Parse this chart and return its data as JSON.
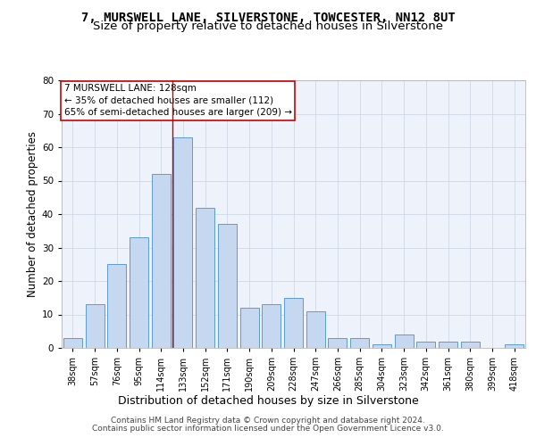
{
  "title": "7, MURSWELL LANE, SILVERSTONE, TOWCESTER, NN12 8UT",
  "subtitle": "Size of property relative to detached houses in Silverstone",
  "xlabel": "Distribution of detached houses by size in Silverstone",
  "ylabel": "Number of detached properties",
  "bar_labels": [
    "38sqm",
    "57sqm",
    "76sqm",
    "95sqm",
    "114sqm",
    "133sqm",
    "152sqm",
    "171sqm",
    "190sqm",
    "209sqm",
    "228sqm",
    "247sqm",
    "266sqm",
    "285sqm",
    "304sqm",
    "323sqm",
    "342sqm",
    "361sqm",
    "380sqm",
    "399sqm",
    "418sqm"
  ],
  "bar_values": [
    3,
    13,
    25,
    33,
    52,
    63,
    42,
    37,
    12,
    13,
    15,
    11,
    3,
    3,
    1,
    4,
    2,
    2,
    2,
    0,
    1
  ],
  "bar_color": "#c5d8f0",
  "bar_edge_color": "#5b9bd5",
  "vline_x_index": 4,
  "ylim": [
    0,
    80
  ],
  "yticks": [
    0,
    10,
    20,
    30,
    40,
    50,
    60,
    70,
    80
  ],
  "annotation_title": "7 MURSWELL LANE: 128sqm",
  "annotation_line1": "← 35% of detached houses are smaller (112)",
  "annotation_line2": "65% of semi-detached houses are larger (209) →",
  "annotation_box_color": "#ffffff",
  "annotation_box_edge": "#cc0000",
  "vline_color": "#cc0000",
  "grid_color": "#d0d8e8",
  "bg_color": "#eef2fa",
  "footer1": "Contains HM Land Registry data © Crown copyright and database right 2024.",
  "footer2": "Contains public sector information licensed under the Open Government Licence v3.0.",
  "title_fontsize": 10,
  "subtitle_fontsize": 9.5,
  "xlabel_fontsize": 9,
  "ylabel_fontsize": 8.5,
  "tick_fontsize": 7,
  "annotation_fontsize": 7.5,
  "footer_fontsize": 6.5
}
